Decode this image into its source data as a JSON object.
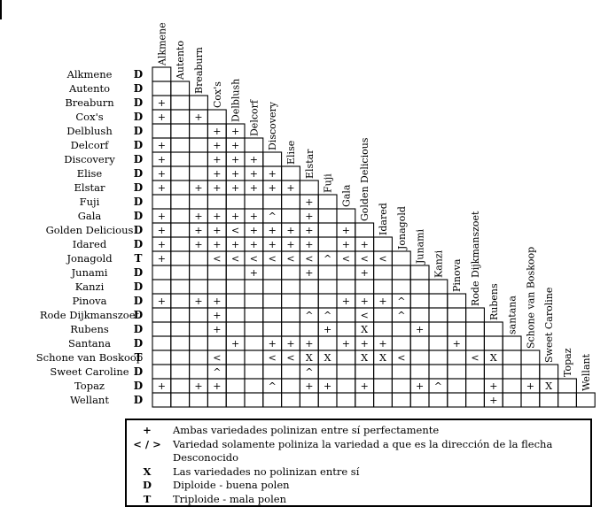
{
  "varieties": [
    {
      "name": "Alkmene",
      "ploidy": "D"
    },
    {
      "name": "Autento",
      "ploidy": "D"
    },
    {
      "name": "Breaburn",
      "ploidy": "D"
    },
    {
      "name": "Cox's",
      "ploidy": "D"
    },
    {
      "name": "Delblush",
      "ploidy": "D"
    },
    {
      "name": "Delcorf",
      "ploidy": "D"
    },
    {
      "name": "Discovery",
      "ploidy": "D"
    },
    {
      "name": "Elise",
      "ploidy": "D"
    },
    {
      "name": "Elstar",
      "ploidy": "D"
    },
    {
      "name": "Fuji",
      "ploidy": "D"
    },
    {
      "name": "Gala",
      "ploidy": "D"
    },
    {
      "name": "Golden Delicious",
      "ploidy": "D"
    },
    {
      "name": "Idared",
      "ploidy": "D"
    },
    {
      "name": "Jonagold",
      "ploidy": "T"
    },
    {
      "name": "Junami",
      "ploidy": "D"
    },
    {
      "name": "Kanzi",
      "ploidy": "D"
    },
    {
      "name": "Pinova",
      "ploidy": "D"
    },
    {
      "name": "Rode Dijkmanszoet",
      "ploidy": "D"
    },
    {
      "name": "Rubens",
      "ploidy": "D"
    },
    {
      "name": "Santana",
      "ploidy": "D"
    },
    {
      "name": "Schone van Boskoop",
      "ploidy": "T"
    },
    {
      "name": "Sweet Caroline",
      "ploidy": "D"
    },
    {
      "name": "Topaz",
      "ploidy": "D"
    },
    {
      "name": "Wellant",
      "ploidy": "D"
    }
  ],
  "column_labels": [
    "Alkmene",
    "Autento",
    "Breaburn",
    "Cox's",
    "Delblush",
    "Delcorf",
    "Discovery",
    "Elise",
    "Elstar",
    "Fuji",
    "Gala",
    "Golden Delicious",
    "Idared",
    "Jonagold",
    "Junami",
    "Kanzi",
    "Pinova",
    "Rode Dijkmanszoet",
    "Rubens",
    "santana",
    "Schone van Boskoop",
    "Sweet Caroline",
    "Topaz",
    "Wellant"
  ],
  "matrix": [
    "",
    "",
    "+",
    "+ +",
    "   ++",
    "+  ++",
    "+  +++",
    "+  ++++",
    "+ ++++++",
    "        +",
    "+ ++++^ +",
    "+ ++<++++ +",
    "+ +++++++ ++",
    "+  <<<<<<^<<<",
    "     +  +  +",
    "",
    "+ ++      +++^",
    "   +    ^^ < ^",
    "   +     + X  +",
    "    + +++ +++   +",
    "   <  <<XX XX<   <X",
    "   ^    ^",
    "+ ++  ^ ++ +  +^  + +X",
    "                  +"
  ],
  "legend": [
    {
      "key": "+",
      "text": "Ambas variedades polinizan entre sí perfectamente"
    },
    {
      "key": "< / >",
      "text": "Variedad solamente poliniza la variedad a que es la dirección de la flecha"
    },
    {
      "key": "",
      "text": "Desconocido"
    },
    {
      "key": "X",
      "text": "Las variedades no polinizan entre sí"
    },
    {
      "key": "D",
      "text": "Diploide - buena polen"
    },
    {
      "key": "T",
      "text": "Triploide - mala polen"
    }
  ]
}
